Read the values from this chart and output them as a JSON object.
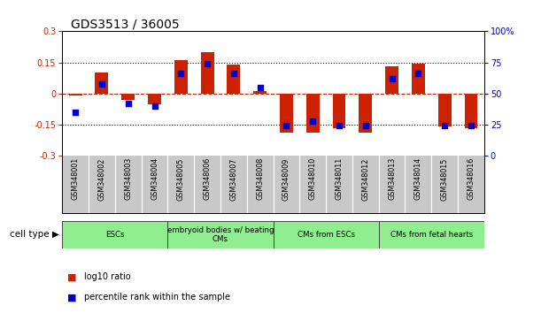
{
  "title": "GDS3513 / 36005",
  "samples": [
    "GSM348001",
    "GSM348002",
    "GSM348003",
    "GSM348004",
    "GSM348005",
    "GSM348006",
    "GSM348007",
    "GSM348008",
    "GSM348009",
    "GSM348010",
    "GSM348011",
    "GSM348012",
    "GSM348013",
    "GSM348014",
    "GSM348015",
    "GSM348016"
  ],
  "log10_ratio": [
    -0.01,
    0.1,
    -0.03,
    -0.05,
    0.16,
    0.2,
    0.14,
    0.014,
    -0.19,
    -0.19,
    -0.165,
    -0.19,
    0.13,
    0.145,
    -0.16,
    -0.165
  ],
  "percentile_rank": [
    35,
    58,
    42,
    40,
    66,
    74,
    66,
    55,
    24,
    28,
    24,
    24,
    62,
    66,
    24,
    24
  ],
  "ylim_left": [
    -0.3,
    0.3
  ],
  "ylim_right": [
    0,
    100
  ],
  "yticks_left": [
    -0.3,
    -0.15,
    0,
    0.15,
    0.3
  ],
  "yticks_right": [
    0,
    25,
    50,
    75,
    100
  ],
  "ytick_labels_left": [
    "-0.3",
    "-0.15",
    "0",
    "0.15",
    "0.3"
  ],
  "ytick_labels_right": [
    "0",
    "25",
    "50",
    "75",
    "100%"
  ],
  "hlines": [
    -0.15,
    0.0,
    0.15
  ],
  "hline_styles": [
    "dotted",
    "dashed_red",
    "dotted"
  ],
  "cell_groups": [
    {
      "label": "ESCs",
      "start": 0,
      "end": 3,
      "color": "#90EE90"
    },
    {
      "label": "embryoid bodies w/ beating\nCMs",
      "start": 4,
      "end": 7,
      "color": "#90EE90"
    },
    {
      "label": "CMs from ESCs",
      "start": 8,
      "end": 11,
      "color": "#90EE90"
    },
    {
      "label": "CMs from fetal hearts",
      "start": 12,
      "end": 15,
      "color": "#90EE90"
    }
  ],
  "bar_color": "#CC2200",
  "dot_color": "#0000CC",
  "bar_width": 0.5,
  "dot_size": 22,
  "cell_type_label": "cell type",
  "legend_items": [
    {
      "color": "#CC2200",
      "label": "log10 ratio"
    },
    {
      "color": "#0000CC",
      "label": "percentile rank within the sample"
    }
  ],
  "background_color": "#ffffff",
  "plot_bg": "#ffffff",
  "title_fontsize": 10,
  "tick_fontsize": 7,
  "label_fontsize": 7
}
